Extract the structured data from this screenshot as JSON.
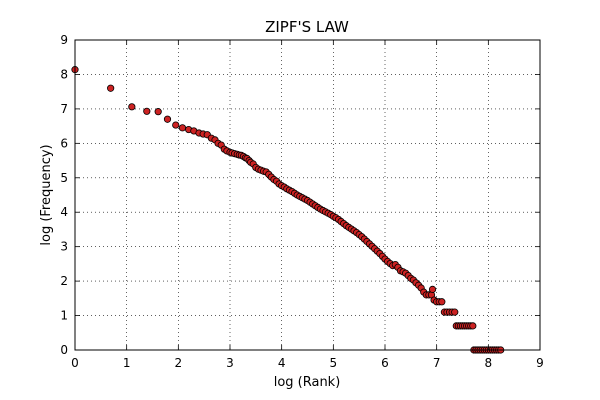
{
  "chart_data": {
    "type": "scatter",
    "title": "ZIPF'S LAW",
    "xlabel": "log (Rank)",
    "ylabel": "log (Frequency)",
    "xlim": [
      0,
      9
    ],
    "ylim": [
      0,
      9
    ],
    "xticks": [
      "0",
      "1",
      "2",
      "3",
      "4",
      "5",
      "6",
      "7",
      "8",
      "9"
    ],
    "yticks": [
      "0",
      "1",
      "2",
      "3",
      "4",
      "5",
      "6",
      "7",
      "8",
      "9"
    ],
    "grid": true,
    "marker_fill": "#cc2222",
    "marker_edge": "#000000",
    "points": [
      [
        0.0,
        8.14
      ],
      [
        0.69,
        7.6
      ],
      [
        1.1,
        7.06
      ],
      [
        1.39,
        6.93
      ],
      [
        1.61,
        6.92
      ],
      [
        1.79,
        6.7
      ],
      [
        1.95,
        6.53
      ],
      [
        2.08,
        6.45
      ],
      [
        2.2,
        6.4
      ],
      [
        2.3,
        6.36
      ],
      [
        2.4,
        6.3
      ],
      [
        2.48,
        6.27
      ],
      [
        2.56,
        6.25
      ],
      [
        2.64,
        6.15
      ],
      [
        2.71,
        6.1
      ],
      [
        2.77,
        6.0
      ],
      [
        2.83,
        5.95
      ],
      [
        2.89,
        5.83
      ],
      [
        2.94,
        5.78
      ],
      [
        3.0,
        5.74
      ],
      [
        3.04,
        5.72
      ],
      [
        3.09,
        5.7
      ],
      [
        3.14,
        5.68
      ],
      [
        3.18,
        5.66
      ],
      [
        3.22,
        5.65
      ],
      [
        3.26,
        5.62
      ],
      [
        3.3,
        5.58
      ],
      [
        3.33,
        5.56
      ],
      [
        3.37,
        5.5
      ],
      [
        3.4,
        5.45
      ],
      [
        3.45,
        5.4
      ],
      [
        3.5,
        5.3
      ],
      [
        3.55,
        5.25
      ],
      [
        3.6,
        5.22
      ],
      [
        3.65,
        5.19
      ],
      [
        3.7,
        5.17
      ],
      [
        3.75,
        5.1
      ],
      [
        3.8,
        5.02
      ],
      [
        3.85,
        4.95
      ],
      [
        3.9,
        4.9
      ],
      [
        3.95,
        4.82
      ],
      [
        4.0,
        4.77
      ],
      [
        4.05,
        4.73
      ],
      [
        4.1,
        4.68
      ],
      [
        4.15,
        4.64
      ],
      [
        4.2,
        4.6
      ],
      [
        4.25,
        4.55
      ],
      [
        4.3,
        4.5
      ],
      [
        4.35,
        4.46
      ],
      [
        4.4,
        4.42
      ],
      [
        4.45,
        4.38
      ],
      [
        4.5,
        4.34
      ],
      [
        4.55,
        4.29
      ],
      [
        4.6,
        4.24
      ],
      [
        4.65,
        4.19
      ],
      [
        4.7,
        4.14
      ],
      [
        4.75,
        4.09
      ],
      [
        4.8,
        4.05
      ],
      [
        4.85,
        4.01
      ],
      [
        4.9,
        3.97
      ],
      [
        4.95,
        3.93
      ],
      [
        5.0,
        3.88
      ],
      [
        5.05,
        3.84
      ],
      [
        5.1,
        3.79
      ],
      [
        5.15,
        3.73
      ],
      [
        5.2,
        3.67
      ],
      [
        5.25,
        3.61
      ],
      [
        5.3,
        3.56
      ],
      [
        5.35,
        3.51
      ],
      [
        5.4,
        3.46
      ],
      [
        5.45,
        3.41
      ],
      [
        5.5,
        3.35
      ],
      [
        5.55,
        3.29
      ],
      [
        5.6,
        3.22
      ],
      [
        5.65,
        3.15
      ],
      [
        5.7,
        3.08
      ],
      [
        5.75,
        3.01
      ],
      [
        5.8,
        2.94
      ],
      [
        5.85,
        2.87
      ],
      [
        5.9,
        2.8
      ],
      [
        5.95,
        2.72
      ],
      [
        6.0,
        2.64
      ],
      [
        6.05,
        2.57
      ],
      [
        6.1,
        2.51
      ],
      [
        6.15,
        2.45
      ],
      [
        6.2,
        2.48
      ],
      [
        6.25,
        2.4
      ],
      [
        6.3,
        2.3
      ],
      [
        6.35,
        2.27
      ],
      [
        6.4,
        2.23
      ],
      [
        6.45,
        2.16
      ],
      [
        6.5,
        2.08
      ],
      [
        6.55,
        2.03
      ],
      [
        6.6,
        1.95
      ],
      [
        6.65,
        1.88
      ],
      [
        6.7,
        1.8
      ],
      [
        6.75,
        1.68
      ],
      [
        6.8,
        1.6
      ],
      [
        6.85,
        1.6
      ],
      [
        6.9,
        1.6
      ],
      [
        6.92,
        1.76
      ],
      [
        6.95,
        1.45
      ],
      [
        7.0,
        1.4
      ],
      [
        7.05,
        1.4
      ],
      [
        7.1,
        1.4
      ],
      [
        7.15,
        1.1
      ],
      [
        7.2,
        1.1
      ],
      [
        7.25,
        1.1
      ],
      [
        7.3,
        1.1
      ],
      [
        7.35,
        1.1
      ],
      [
        7.38,
        0.7
      ],
      [
        7.42,
        0.7
      ],
      [
        7.46,
        0.7
      ],
      [
        7.5,
        0.7
      ],
      [
        7.54,
        0.7
      ],
      [
        7.58,
        0.7
      ],
      [
        7.62,
        0.7
      ],
      [
        7.66,
        0.7
      ],
      [
        7.7,
        0.7
      ],
      [
        7.72,
        0.0
      ],
      [
        7.76,
        0.0
      ],
      [
        7.8,
        0.0
      ],
      [
        7.84,
        0.0
      ],
      [
        7.88,
        0.0
      ],
      [
        7.92,
        0.0
      ],
      [
        7.96,
        0.0
      ],
      [
        8.0,
        0.0
      ],
      [
        8.04,
        0.0
      ],
      [
        8.08,
        0.0
      ],
      [
        8.12,
        0.0
      ],
      [
        8.16,
        0.0
      ],
      [
        8.2,
        0.0
      ],
      [
        8.24,
        0.0
      ]
    ]
  }
}
